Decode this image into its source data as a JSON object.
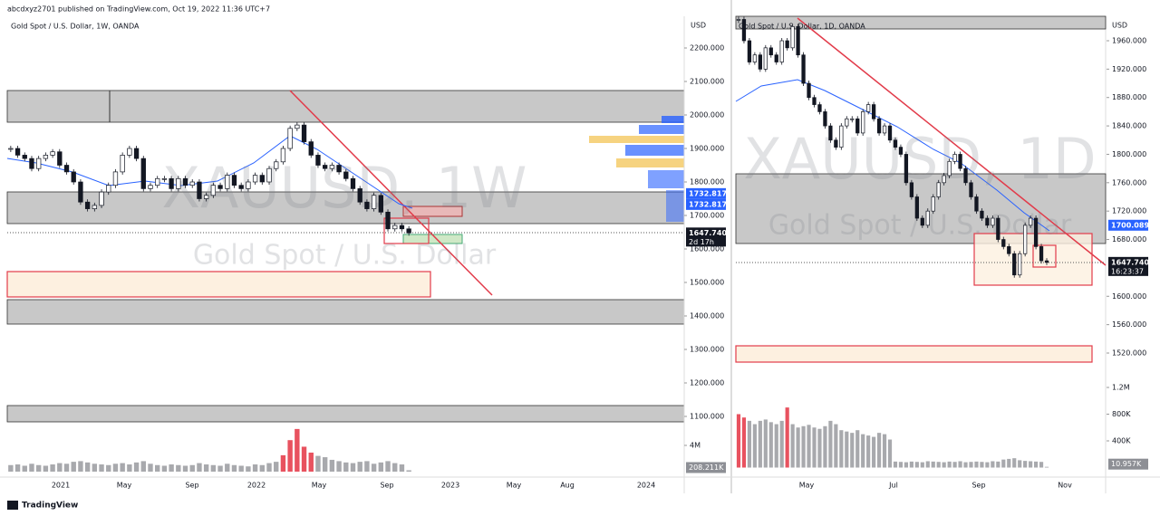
{
  "header": "abcdxyz2701 published on TradingView.com, Oct 19, 2022 11:36 UTC+7",
  "footer": "TradingView",
  "left_panel": {
    "symbol": "Gold Spot / U.S. Dollar, 1W, OANDA",
    "watermark": "XAUUSD, 1W",
    "watermark_name": "Gold Spot / U.S. Dollar",
    "currency": "USD",
    "ylim": [
      1100,
      2200
    ],
    "yticks": [
      {
        "value": 2200,
        "label": "2200.000"
      },
      {
        "value": 2100,
        "label": "2100.000"
      },
      {
        "value": 2000,
        "label": "2000.000"
      },
      {
        "value": 1900,
        "label": "1900.000"
      },
      {
        "value": 1800,
        "label": "1800.000"
      },
      {
        "value": 1700,
        "label": "1700.000"
      },
      {
        "value": 1600,
        "label": "1600.000"
      },
      {
        "value": 1500,
        "label": "1500.000"
      },
      {
        "value": 1400,
        "label": "1400.000"
      },
      {
        "value": 1300,
        "label": "1300.000"
      },
      {
        "value": 1200,
        "label": "1200.000"
      },
      {
        "value": 1100,
        "label": "1100.000"
      }
    ],
    "price_tags": [
      {
        "value": 1732.817,
        "label": "1732.817",
        "color": "#2962ff"
      },
      {
        "value": 1732.817,
        "label": "1732.817",
        "color": "#2962ff"
      },
      {
        "value": 1647.74,
        "label": "1647.740",
        "color": "#131722"
      }
    ],
    "countdown": "2d 17h",
    "volume_ticks": [
      {
        "value": 4000000,
        "label": "4M"
      }
    ],
    "volume_tag": {
      "value": 208211,
      "label": "208.211K"
    },
    "time_labels": [
      "2021",
      "May",
      "Sep",
      "2022",
      "May",
      "Sep",
      "2023",
      "May",
      "Aug",
      "2024"
    ],
    "closes": [
      1900,
      1880,
      1870,
      1840,
      1870,
      1880,
      1890,
      1850,
      1830,
      1800,
      1740,
      1720,
      1730,
      1770,
      1790,
      1830,
      1880,
      1900,
      1870,
      1780,
      1790,
      1810,
      1810,
      1780,
      1810,
      1790,
      1800,
      1750,
      1760,
      1790,
      1780,
      1820,
      1790,
      1780,
      1800,
      1820,
      1800,
      1840,
      1860,
      1900,
      1960,
      1970,
      1920,
      1880,
      1850,
      1840,
      1850,
      1830,
      1810,
      1780,
      1740,
      1720,
      1760,
      1710,
      1660,
      1670,
      1660,
      1647.74
    ],
    "volumes": [
      1000000,
      1100000,
      900000,
      1200000,
      1000000,
      900000,
      1100000,
      1300000,
      1200000,
      1500000,
      1600000,
      1400000,
      1200000,
      1100000,
      1000000,
      1200000,
      1300000,
      1100000,
      1400000,
      1600000,
      1200000,
      1000000,
      900000,
      1100000,
      1000000,
      900000,
      1000000,
      1300000,
      1100000,
      1000000,
      900000,
      1200000,
      1000000,
      900000,
      800000,
      1100000,
      1000000,
      1300000,
      1500000,
      2500000,
      4800000,
      6500000,
      3800000,
      2900000,
      2400000,
      2200000,
      1800000,
      1600000,
      1400000,
      1300000,
      1500000,
      1600000,
      1200000,
      1400000,
      1600000,
      1300000,
      1100000,
      208211
    ]
  },
  "right_panel": {
    "symbol": "Gold Spot / U.S. Dollar, 1D, OANDA",
    "watermark": "XAUUSD, 1D",
    "watermark_name": "Gold Spot / U.S. Dollar",
    "currency": "USD",
    "ylim": [
      1520,
      1960
    ],
    "yticks": [
      {
        "value": 1960,
        "label": "1960.000"
      },
      {
        "value": 1920,
        "label": "1920.000"
      },
      {
        "value": 1880,
        "label": "1880.000"
      },
      {
        "value": 1840,
        "label": "1840.000"
      },
      {
        "value": 1800,
        "label": "1800.000"
      },
      {
        "value": 1760,
        "label": "1760.000"
      },
      {
        "value": 1720,
        "label": "1720.000"
      },
      {
        "value": 1680,
        "label": "1680.000"
      },
      {
        "value": 1600,
        "label": "1600.000"
      },
      {
        "value": 1560,
        "label": "1560.000"
      },
      {
        "value": 1520,
        "label": "1520.000"
      }
    ],
    "price_tags": [
      {
        "value": 1700.089,
        "label": "1700.089",
        "color": "#2962ff"
      },
      {
        "value": 1647.74,
        "label": "1647.740",
        "color": "#131722"
      }
    ],
    "countdown": "16:23:37",
    "volume_ticks": [
      {
        "value": 1200000,
        "label": "1.2M"
      },
      {
        "value": 800000,
        "label": "800K"
      },
      {
        "value": 400000,
        "label": "400K"
      }
    ],
    "volume_tag": {
      "value": 10957,
      "label": "10.957K"
    },
    "time_labels": [
      "May",
      "Jul",
      "Sep",
      "Nov"
    ],
    "closes": [
      1990,
      1960,
      1930,
      1940,
      1920,
      1950,
      1940,
      1930,
      1960,
      1950,
      1980,
      1940,
      1900,
      1880,
      1870,
      1860,
      1840,
      1820,
      1810,
      1840,
      1850,
      1850,
      1830,
      1860,
      1870,
      1850,
      1830,
      1840,
      1820,
      1810,
      1800,
      1760,
      1740,
      1710,
      1700,
      1720,
      1740,
      1760,
      1770,
      1790,
      1800,
      1780,
      1760,
      1740,
      1720,
      1710,
      1700,
      1710,
      1680,
      1670,
      1660,
      1630,
      1660,
      1700,
      1710,
      1670,
      1650,
      1647.74
    ],
    "volumes": [
      800000,
      750000,
      700000,
      650000,
      700000,
      720000,
      680000,
      650000,
      700000,
      900000,
      650000,
      600000,
      620000,
      640000,
      600000,
      580000,
      620000,
      700000,
      650000,
      560000,
      540000,
      520000,
      560000,
      500000,
      480000,
      460000,
      520000,
      500000,
      420000,
      90000,
      85000,
      80000,
      90000,
      85000,
      80000,
      95000,
      90000,
      85000,
      80000,
      90000,
      85000,
      95000,
      80000,
      85000,
      90000,
      85000,
      80000,
      95000,
      90000,
      120000,
      130000,
      140000,
      110000,
      100000,
      95000,
      90000,
      85000,
      10957
    ]
  }
}
